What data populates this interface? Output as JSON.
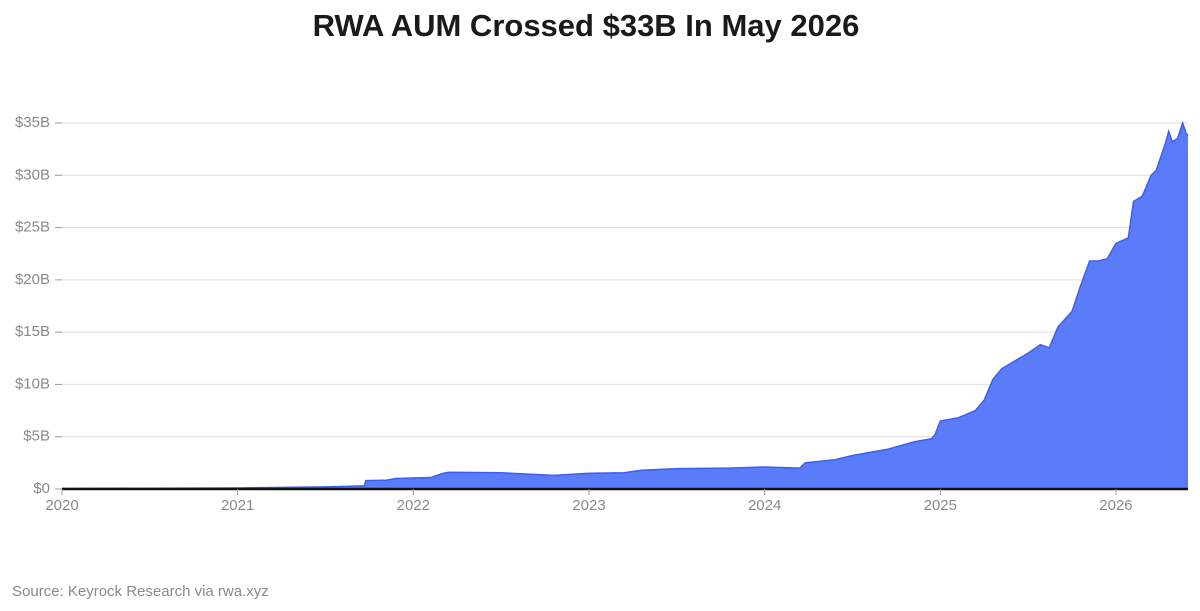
{
  "chart_data": {
    "type": "area",
    "title": "RWA AUM Crossed $33B In May 2026",
    "source": "Source: Keyrock Research via rwa.xyz",
    "color": "#5a7cfb",
    "line_color": "#3b60ee",
    "x": [
      2020.0,
      2021.0,
      2021.5,
      2021.72,
      2021.73,
      2021.85,
      2021.9,
      2022.1,
      2022.17,
      2022.2,
      2022.5,
      2022.8,
      2023.0,
      2023.2,
      2023.3,
      2023.5,
      2023.8,
      2024.0,
      2024.2,
      2024.23,
      2024.4,
      2024.5,
      2024.7,
      2024.85,
      2024.95,
      2024.97,
      2025.0,
      2025.1,
      2025.2,
      2025.25,
      2025.3,
      2025.35,
      2025.5,
      2025.57,
      2025.62,
      2025.67,
      2025.75,
      2025.8,
      2025.85,
      2025.9,
      2025.95,
      2026.0,
      2026.07,
      2026.1,
      2026.15,
      2026.2,
      2026.23,
      2026.25,
      2026.28,
      2026.3,
      2026.32,
      2026.35,
      2026.38,
      2026.4,
      2026.41
    ],
    "values": [
      0.05,
      0.1,
      0.2,
      0.3,
      0.8,
      0.85,
      1.0,
      1.1,
      1.5,
      1.6,
      1.55,
      1.3,
      1.5,
      1.55,
      1.8,
      1.95,
      2.0,
      2.1,
      2.0,
      2.5,
      2.8,
      3.2,
      3.8,
      4.5,
      4.8,
      5.2,
      6.5,
      6.8,
      7.5,
      8.5,
      10.5,
      11.5,
      13.0,
      13.8,
      13.5,
      15.5,
      17.0,
      19.5,
      21.8,
      21.8,
      22.0,
      23.5,
      24.0,
      27.5,
      28.0,
      30.0,
      30.5,
      31.5,
      33.0,
      34.2,
      33.2,
      33.5,
      35.0,
      34.0,
      33.8
    ],
    "xlim": [
      2020,
      2026.41
    ],
    "xticks": [
      2020,
      2021,
      2022,
      2023,
      2024,
      2025,
      2026
    ],
    "ylim": [
      0,
      35
    ],
    "yticks": [
      {
        "value": 0,
        "label": "$0"
      },
      {
        "value": 5,
        "label": "$5B"
      },
      {
        "value": 10,
        "label": "$10B"
      },
      {
        "value": 15,
        "label": "$15B"
      },
      {
        "value": 20,
        "label": "$20B"
      },
      {
        "value": 25,
        "label": "$25B"
      },
      {
        "value": 30,
        "label": "$30B"
      },
      {
        "value": 35,
        "label": "$35B"
      }
    ],
    "grid": true
  }
}
